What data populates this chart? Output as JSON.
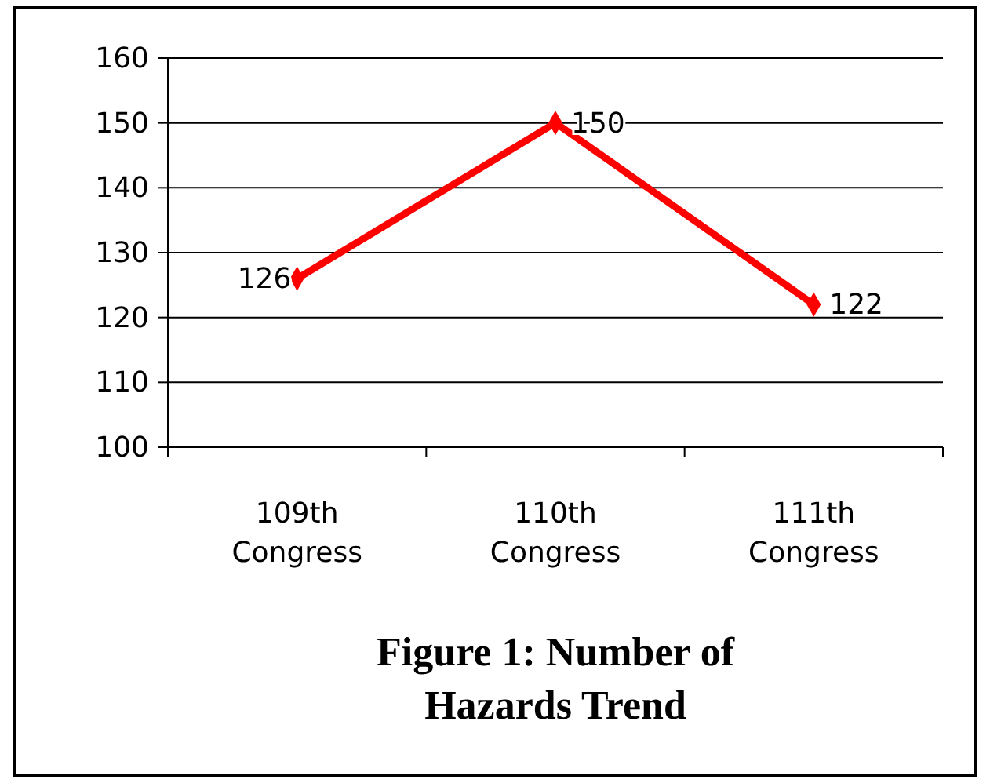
{
  "chart_data": {
    "type": "line",
    "title": "Figure 1: Number of Hazards Trend",
    "categories": [
      "109th Congress",
      "110th Congress",
      "111th Congress"
    ],
    "series": [
      {
        "color": "#ff0000",
        "values": [
          126,
          150,
          122
        ]
      }
    ],
    "ylim": [
      100,
      160
    ],
    "yticks": [
      100,
      110,
      120,
      130,
      140,
      150,
      160
    ],
    "grid": "y",
    "marker": "diamond",
    "line_style": "solid",
    "data_labels": true
  }
}
